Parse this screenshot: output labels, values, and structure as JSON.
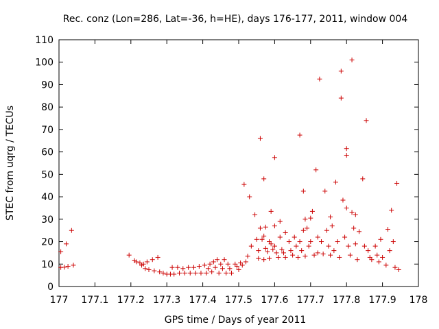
{
  "chart_data": {
    "type": "scatter",
    "title": "Rec. conz (Lon=286, Lat=-36, h=HE), days 176-177, 2011, window 004",
    "xlabel": "GPS time / Days of year 2011",
    "ylabel": "STEC from uqrg / TECUs",
    "xlim": [
      177,
      178
    ],
    "ylim": [
      0,
      110
    ],
    "xticks": [
      "177",
      "177.1",
      "177.2",
      "177.3",
      "177.4",
      "177.5",
      "177.6",
      "177.7",
      "177.8",
      "177.9",
      "178"
    ],
    "yticks": [
      "0",
      "10",
      "20",
      "30",
      "40",
      "50",
      "60",
      "70",
      "80",
      "90",
      "100",
      "110"
    ],
    "marker": "plus",
    "color": "#cc0000",
    "grid": false,
    "points": [
      [
        177.005,
        15.5
      ],
      [
        177.005,
        8.5
      ],
      [
        177.015,
        8.6
      ],
      [
        177.02,
        19
      ],
      [
        177.025,
        9
      ],
      [
        177.035,
        25
      ],
      [
        177.04,
        9.5
      ],
      [
        177.195,
        14
      ],
      [
        177.21,
        11.5
      ],
      [
        177.215,
        11
      ],
      [
        177.225,
        10.5
      ],
      [
        177.23,
        9.5
      ],
      [
        177.235,
        10
      ],
      [
        177.24,
        8
      ],
      [
        177.245,
        11
      ],
      [
        177.25,
        7.5
      ],
      [
        177.26,
        12
      ],
      [
        177.265,
        7
      ],
      [
        177.275,
        13
      ],
      [
        177.28,
        6.5
      ],
      [
        177.29,
        6
      ],
      [
        177.3,
        5.5
      ],
      [
        177.31,
        5.5
      ],
      [
        177.315,
        8.5
      ],
      [
        177.32,
        5.5
      ],
      [
        177.33,
        8.5
      ],
      [
        177.335,
        6
      ],
      [
        177.345,
        8
      ],
      [
        177.35,
        6
      ],
      [
        177.36,
        8.5
      ],
      [
        177.365,
        6
      ],
      [
        177.375,
        8.5
      ],
      [
        177.38,
        6
      ],
      [
        177.39,
        9
      ],
      [
        177.395,
        6
      ],
      [
        177.405,
        9.5
      ],
      [
        177.41,
        6
      ],
      [
        177.415,
        8
      ],
      [
        177.42,
        10
      ],
      [
        177.425,
        6.5
      ],
      [
        177.43,
        11
      ],
      [
        177.435,
        8.5
      ],
      [
        177.44,
        12
      ],
      [
        177.445,
        6
      ],
      [
        177.45,
        10
      ],
      [
        177.455,
        8
      ],
      [
        177.46,
        12
      ],
      [
        177.465,
        6
      ],
      [
        177.47,
        10
      ],
      [
        177.475,
        8
      ],
      [
        177.48,
        6
      ],
      [
        177.49,
        10
      ],
      [
        177.495,
        9
      ],
      [
        177.5,
        7.5
      ],
      [
        177.505,
        10.5
      ],
      [
        177.51,
        9.5
      ],
      [
        177.515,
        45.5
      ],
      [
        177.52,
        11
      ],
      [
        177.525,
        13.5
      ],
      [
        177.53,
        40
      ],
      [
        177.535,
        18
      ],
      [
        177.545,
        32
      ],
      [
        177.55,
        21
      ],
      [
        177.555,
        12.5
      ],
      [
        177.555,
        16
      ],
      [
        177.56,
        66
      ],
      [
        177.56,
        26
      ],
      [
        177.565,
        21
      ],
      [
        177.57,
        48
      ],
      [
        177.57,
        22.5
      ],
      [
        177.57,
        12
      ],
      [
        177.575,
        26.5
      ],
      [
        177.575,
        17
      ],
      [
        177.58,
        15.5
      ],
      [
        177.585,
        20
      ],
      [
        177.585,
        12.5
      ],
      [
        177.59,
        33.5
      ],
      [
        177.59,
        19
      ],
      [
        177.595,
        16.5
      ],
      [
        177.6,
        57.5
      ],
      [
        177.6,
        27
      ],
      [
        177.6,
        18
      ],
      [
        177.605,
        15
      ],
      [
        177.61,
        13
      ],
      [
        177.615,
        29
      ],
      [
        177.615,
        22
      ],
      [
        177.62,
        16.5
      ],
      [
        177.625,
        15
      ],
      [
        177.63,
        24
      ],
      [
        177.63,
        13
      ],
      [
        177.64,
        20
      ],
      [
        177.645,
        16
      ],
      [
        177.65,
        14
      ],
      [
        177.655,
        22
      ],
      [
        177.66,
        18
      ],
      [
        177.665,
        13
      ],
      [
        177.67,
        67.5
      ],
      [
        177.67,
        20
      ],
      [
        177.675,
        16
      ],
      [
        177.68,
        42.5
      ],
      [
        177.68,
        25
      ],
      [
        177.685,
        30
      ],
      [
        177.685,
        13.5
      ],
      [
        177.69,
        26
      ],
      [
        177.695,
        18
      ],
      [
        177.7,
        30.5
      ],
      [
        177.7,
        20
      ],
      [
        177.705,
        33.5
      ],
      [
        177.71,
        14
      ],
      [
        177.715,
        52
      ],
      [
        177.72,
        22
      ],
      [
        177.72,
        15
      ],
      [
        177.725,
        92.5
      ],
      [
        177.73,
        20
      ],
      [
        177.735,
        14.5
      ],
      [
        177.74,
        42.5
      ],
      [
        177.745,
        25
      ],
      [
        177.75,
        18
      ],
      [
        177.755,
        31
      ],
      [
        177.755,
        14
      ],
      [
        177.76,
        27
      ],
      [
        177.765,
        16
      ],
      [
        177.77,
        46.5
      ],
      [
        177.775,
        20
      ],
      [
        177.78,
        13
      ],
      [
        177.785,
        96
      ],
      [
        177.785,
        84
      ],
      [
        177.79,
        38.5
      ],
      [
        177.795,
        22
      ],
      [
        177.8,
        35
      ],
      [
        177.8,
        61.5
      ],
      [
        177.8,
        58.5
      ],
      [
        177.805,
        18
      ],
      [
        177.81,
        14
      ],
      [
        177.815,
        101
      ],
      [
        177.815,
        33
      ],
      [
        177.82,
        26
      ],
      [
        177.825,
        32
      ],
      [
        177.825,
        19
      ],
      [
        177.83,
        12
      ],
      [
        177.835,
        24.5
      ],
      [
        177.845,
        48
      ],
      [
        177.85,
        18
      ],
      [
        177.855,
        74
      ],
      [
        177.86,
        16
      ],
      [
        177.865,
        13
      ],
      [
        177.87,
        12
      ],
      [
        177.88,
        18
      ],
      [
        177.885,
        14
      ],
      [
        177.89,
        11
      ],
      [
        177.895,
        21
      ],
      [
        177.9,
        13
      ],
      [
        177.91,
        9.5
      ],
      [
        177.915,
        25.5
      ],
      [
        177.92,
        16
      ],
      [
        177.925,
        34
      ],
      [
        177.93,
        20
      ],
      [
        177.935,
        8.5
      ],
      [
        177.94,
        46
      ],
      [
        177.945,
        7.5
      ]
    ]
  }
}
